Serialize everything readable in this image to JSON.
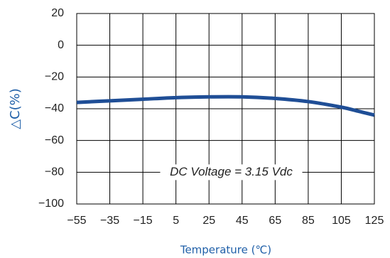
{
  "chart_data": {
    "type": "line",
    "title": "",
    "xlabel": "Temperature (℃)",
    "ylabel": "△C(%)",
    "xlim": [
      -55,
      125
    ],
    "ylim": [
      -100,
      20
    ],
    "x_ticks": [
      -55,
      -35,
      -15,
      5,
      25,
      45,
      65,
      85,
      105,
      125
    ],
    "y_ticks": [
      20,
      0,
      -20,
      -40,
      -60,
      -80,
      -100
    ],
    "x_tick_labels": [
      "−55",
      "−35",
      "−15",
      "5",
      "25",
      "45",
      "65",
      "85",
      "105",
      "125"
    ],
    "y_tick_labels": [
      "20",
      "0",
      "−20",
      "−40",
      "−60",
      "−80",
      "−100"
    ],
    "grid": true,
    "annotation": "DC Voltage = 3.15 Vdc",
    "series": [
      {
        "color": "#1f4e96",
        "x": [
          -55,
          -35,
          -15,
          5,
          25,
          45,
          65,
          85,
          105,
          115,
          125
        ],
        "y": [
          -36,
          -35,
          -34,
          -33,
          -32.5,
          -32.5,
          -33.5,
          -35.5,
          -39,
          -41.5,
          -44
        ]
      }
    ]
  },
  "colors": {
    "axis_label": "#1f5fa8",
    "grid": "#000000",
    "text": "#222222"
  }
}
